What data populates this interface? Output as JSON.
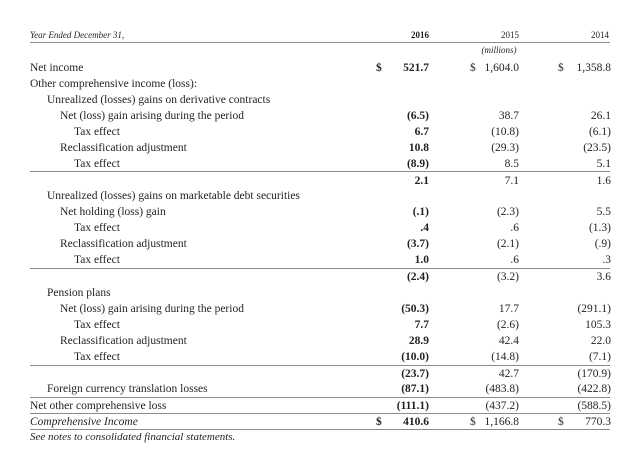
{
  "header": {
    "period_label": "Year Ended December 31,",
    "years": [
      "2016",
      "2015",
      "2014"
    ],
    "units": "(millions)"
  },
  "rows": [
    {
      "label": "Net income",
      "values": [
        "521.7",
        "1,604.0",
        "1,358.8"
      ],
      "currency": [
        "$",
        "$",
        "$"
      ]
    },
    {
      "label": "Other comprehensive income (loss):",
      "values": [
        "",
        "",
        ""
      ]
    },
    {
      "label": "Unrealized (losses) gains on derivative contracts",
      "values": [
        "",
        "",
        ""
      ]
    },
    {
      "label": "Net (loss) gain arising during the period",
      "values": [
        "(6.5)",
        "38.7",
        "26.1"
      ]
    },
    {
      "label": "Tax effect",
      "values": [
        "6.7",
        "(10.8)",
        "(6.1)"
      ]
    },
    {
      "label": "Reclassification adjustment",
      "values": [
        "10.8",
        "(29.3)",
        "(23.5)"
      ]
    },
    {
      "label": "Tax effect",
      "values": [
        "(8.9)",
        "8.5",
        "5.1"
      ]
    },
    {
      "label": "",
      "values": [
        "2.1",
        "7.1",
        "1.6"
      ]
    },
    {
      "label": "Unrealized (losses) gains on marketable debt securities",
      "values": [
        "",
        "",
        ""
      ]
    },
    {
      "label": "Net holding (loss) gain",
      "values": [
        "(.1)",
        "(2.3)",
        "5.5"
      ]
    },
    {
      "label": "Tax effect",
      "values": [
        ".4",
        ".6",
        "(1.3)"
      ]
    },
    {
      "label": "Reclassification adjustment",
      "values": [
        "(3.7)",
        "(2.1)",
        "(.9)"
      ]
    },
    {
      "label": "Tax effect",
      "values": [
        "1.0",
        ".6",
        ".3"
      ]
    },
    {
      "label": "",
      "values": [
        "(2.4)",
        "(3.2)",
        "3.6"
      ]
    },
    {
      "label": "Pension plans",
      "values": [
        "",
        "",
        ""
      ]
    },
    {
      "label": "Net (loss) gain arising during the period",
      "values": [
        "(50.3)",
        "17.7",
        "(291.1)"
      ]
    },
    {
      "label": "Tax effect",
      "values": [
        "7.7",
        "(2.6)",
        "105.3"
      ]
    },
    {
      "label": "Reclassification adjustment",
      "values": [
        "28.9",
        "42.4",
        "22.0"
      ]
    },
    {
      "label": "Tax effect",
      "values": [
        "(10.0)",
        "(14.8)",
        "(7.1)"
      ]
    },
    {
      "label": "",
      "values": [
        "(23.7)",
        "42.7",
        "(170.9)"
      ]
    },
    {
      "label": "Foreign currency translation losses",
      "values": [
        "(87.1)",
        "(483.8)",
        "(422.8)"
      ]
    },
    {
      "label": "Net other comprehensive loss",
      "values": [
        "(111.1)",
        "(437.2)",
        "(588.5)"
      ]
    },
    {
      "label": "Comprehensive Income",
      "values": [
        "410.6",
        "1,166.8",
        "770.3"
      ],
      "currency": [
        "$",
        "$",
        "$"
      ]
    }
  ],
  "footnote": "See notes to consolidated financial statements."
}
